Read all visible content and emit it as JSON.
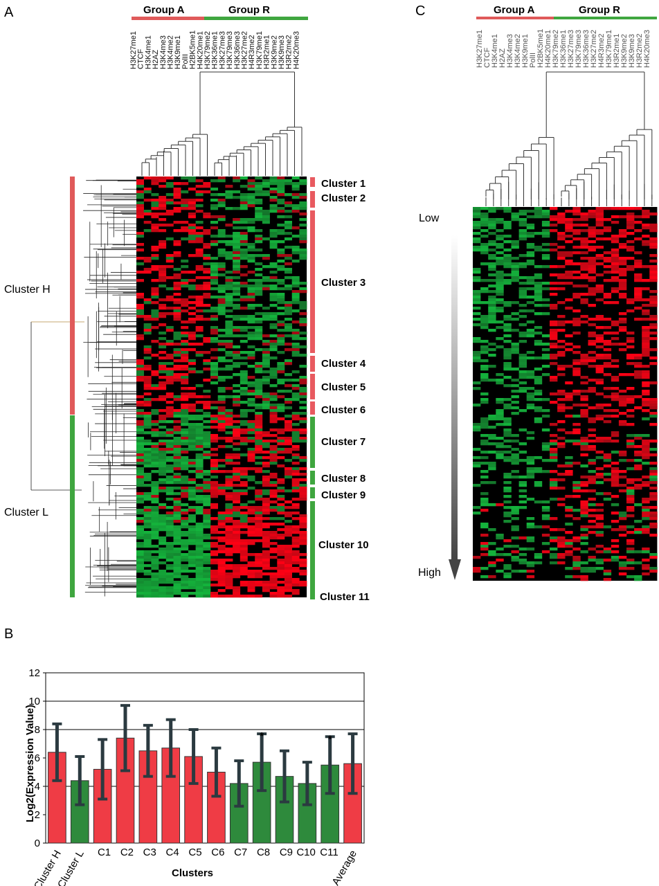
{
  "panels": {
    "a": "A",
    "b": "B",
    "c": "C"
  },
  "groups": {
    "a": "Group A",
    "r": "Group R"
  },
  "colors": {
    "group_a": "#e05a5a",
    "group_r": "#3fa63f",
    "heat_red": "#ff2020",
    "heat_green": "#1fa63a",
    "bar_red": "#ef3c45",
    "bar_green": "#2e8a3c"
  },
  "heatmap_a_columns": [
    "H3K27me1",
    "CTCF",
    "H3K4me1",
    "H2AZ",
    "H3K4me3",
    "H3K4me2",
    "H3K9me1",
    "PolII",
    "H2BK5me1",
    "H4K20me1",
    "H3K79me2",
    "H3K36me1",
    "H3K27me3",
    "H3K79me3",
    "H3K36me3",
    "H3K27me2",
    "H4R3me2",
    "H3K79me1",
    "H3R2me1",
    "H3K9me2",
    "H3K9me3",
    "H3R2me2",
    "H4K20me3"
  ],
  "heatmap_c_columns": [
    "H3K27me1",
    "CTCF",
    "H3K4me1",
    "H2AZ",
    "H3K4me3",
    "H3K4me2",
    "H3K9me1",
    "PolII",
    "H2BK5me1",
    "H4K20me1",
    "H3K79me2",
    "H3K36me1",
    "H3K27me3",
    "H3K79me3",
    "H3K36me3",
    "H3K27me2",
    "H4R3me2",
    "H3K79me1",
    "H3R2me1",
    "H3K9me2",
    "H3K9me3",
    "H3R2me2",
    "H4K20me3"
  ],
  "clusters_big": [
    "Cluster H",
    "Cluster L"
  ],
  "clusters": [
    "Cluster 1",
    "Cluster 2",
    "Cluster 3",
    "Cluster 4",
    "Cluster 5",
    "Cluster 6",
    "Cluster 7",
    "Cluster 8",
    "Cluster 9",
    "Cluster 10",
    "Cluster 11"
  ],
  "gradient": {
    "low": "Low",
    "high": "High"
  },
  "chart_data": {
    "type": "bar",
    "xlabel": "Clusters",
    "ylabel": "Log2(Expression Value)",
    "ylim": [
      0,
      12
    ],
    "yticks": [
      0,
      2,
      4,
      6,
      8,
      10,
      12
    ],
    "grid_lines_at": [
      4,
      8,
      10,
      12
    ],
    "categories": [
      "Cluster H",
      "Cluster L",
      "C1",
      "C2",
      "C3",
      "C4",
      "C5",
      "C6",
      "C7",
      "C8",
      "C9",
      "C10",
      "C11",
      "Average"
    ],
    "values": [
      6.4,
      4.4,
      5.2,
      7.4,
      6.5,
      6.7,
      6.1,
      5.0,
      4.2,
      5.7,
      4.7,
      4.2,
      5.5,
      5.6
    ],
    "errors": [
      2.0,
      1.7,
      2.1,
      2.3,
      1.8,
      2.0,
      1.9,
      1.7,
      1.6,
      2.0,
      1.8,
      1.5,
      2.0,
      2.1
    ],
    "bar_colors": [
      "red",
      "green",
      "red",
      "red",
      "red",
      "red",
      "red",
      "red",
      "green",
      "green",
      "green",
      "green",
      "green",
      "red"
    ],
    "annotations": [
      {
        "category": "C8",
        "text": "*"
      },
      {
        "category": "C11",
        "text": "*"
      }
    ]
  }
}
